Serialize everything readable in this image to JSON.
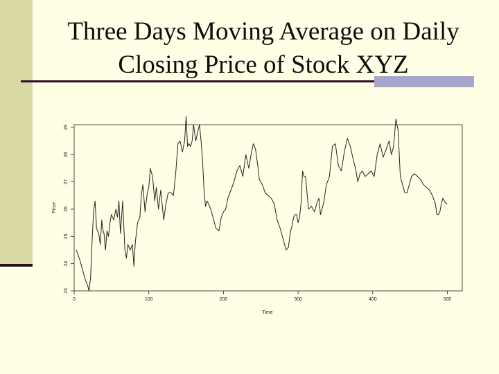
{
  "slide": {
    "title_line1": "Three Days Moving Average on Daily",
    "title_line2": "Closing Price of Stock XYZ"
  },
  "colors": {
    "background": "#ffffe5",
    "left_bar": "#d9d9a6",
    "rule": "#2a0a25",
    "rule_accent": "#a6a6cc",
    "series": "#222222"
  },
  "chart_data": {
    "type": "line",
    "xlabel": "Time",
    "ylabel": "Price",
    "xlim": [
      0,
      520
    ],
    "ylim": [
      23,
      29.1
    ],
    "x_ticks": [
      0,
      100,
      200,
      300,
      400,
      500
    ],
    "y_ticks": [
      23,
      24,
      25,
      26,
      27,
      28,
      29
    ],
    "y_tick_labels": [
      "23",
      "24",
      "25",
      "26",
      "27",
      "28",
      "29"
    ],
    "grid": false,
    "series": [
      {
        "name": "",
        "x": [
          3,
          8,
          12,
          15,
          18,
          20,
          22,
          24,
          26,
          28,
          30,
          33,
          35,
          37,
          38,
          40,
          42,
          44,
          46,
          48,
          50,
          53,
          56,
          58,
          60,
          62,
          65,
          68,
          70,
          72,
          75,
          78,
          80,
          82,
          85,
          88,
          90,
          92,
          95,
          98,
          100,
          102,
          105,
          108,
          110,
          113,
          116,
          120,
          123,
          126,
          130,
          133,
          136,
          139,
          142,
          145,
          148,
          150,
          152,
          154,
          156,
          158,
          160,
          163,
          166,
          168,
          170,
          172,
          174,
          176,
          178,
          180,
          183,
          186,
          190,
          194,
          197,
          200,
          203,
          206,
          210,
          214,
          218,
          222,
          226,
          230,
          234,
          237,
          240,
          243,
          246,
          248,
          252,
          256,
          260,
          264,
          268,
          272,
          276,
          280,
          284,
          287,
          290,
          292,
          294,
          296,
          298,
          300,
          302,
          304,
          306,
          308,
          310,
          314,
          318,
          322,
          325,
          328,
          330,
          334,
          338,
          342,
          346,
          350,
          354,
          358,
          362,
          366,
          370,
          374,
          377,
          380,
          383,
          386,
          390,
          394,
          398,
          402,
          406,
          410,
          414,
          418,
          422,
          425,
          428,
          431,
          434,
          437,
          440,
          443,
          446,
          449,
          452,
          456,
          460,
          464,
          468,
          472,
          476,
          480,
          484,
          486,
          488,
          490,
          492,
          494,
          496,
          498,
          500
        ],
        "y": [
          24.5,
          24.1,
          23.7,
          23.4,
          23.2,
          23.0,
          23.5,
          24.8,
          25.9,
          26.3,
          25.3,
          25.1,
          24.7,
          25.6,
          25.3,
          25.1,
          24.5,
          25.2,
          25.0,
          25.5,
          25.8,
          25.6,
          26.0,
          25.7,
          26.3,
          25.1,
          26.3,
          24.5,
          24.2,
          24.7,
          24.5,
          24.7,
          23.9,
          24.8,
          25.5,
          25.7,
          26.5,
          26.9,
          25.9,
          26.6,
          26.8,
          27.5,
          27.2,
          26.3,
          26.8,
          26.0,
          26.7,
          25.6,
          26.2,
          26.6,
          26.6,
          26.5,
          27.3,
          28.4,
          28.5,
          28.1,
          28.5,
          29.4,
          28.3,
          28.4,
          28.3,
          28.5,
          29.1,
          28.5,
          28.9,
          29.1,
          28.5,
          27.8,
          26.7,
          26.1,
          26.3,
          26.2,
          26.0,
          25.7,
          25.3,
          25.2,
          25.7,
          25.9,
          26.0,
          26.4,
          26.7,
          27.0,
          27.4,
          27.6,
          27.2,
          28.0,
          27.5,
          28.0,
          28.4,
          28.2,
          27.6,
          27.1,
          26.9,
          26.6,
          26.5,
          26.4,
          26.2,
          25.6,
          25.3,
          24.9,
          24.5,
          24.6,
          25.2,
          25.4,
          25.7,
          25.8,
          25.8,
          25.5,
          25.7,
          26.2,
          27.4,
          27.2,
          27.2,
          26.0,
          26.1,
          25.9,
          26.2,
          26.4,
          25.8,
          26.2,
          26.9,
          27.2,
          28.3,
          28.4,
          27.6,
          27.4,
          28.1,
          28.6,
          28.3,
          27.8,
          27.5,
          27.0,
          27.3,
          27.4,
          27.2,
          27.3,
          27.4,
          27.2,
          28.0,
          28.4,
          27.9,
          28.2,
          28.5,
          28.0,
          28.3,
          29.3,
          28.9,
          27.2,
          26.9,
          26.6,
          26.6,
          26.9,
          27.2,
          27.3,
          27.2,
          27.1,
          26.9,
          26.8,
          26.7,
          26.5,
          26.2,
          25.8,
          25.8,
          25.9,
          26.2,
          26.4,
          26.3,
          26.2,
          26.2
        ]
      }
    ]
  }
}
